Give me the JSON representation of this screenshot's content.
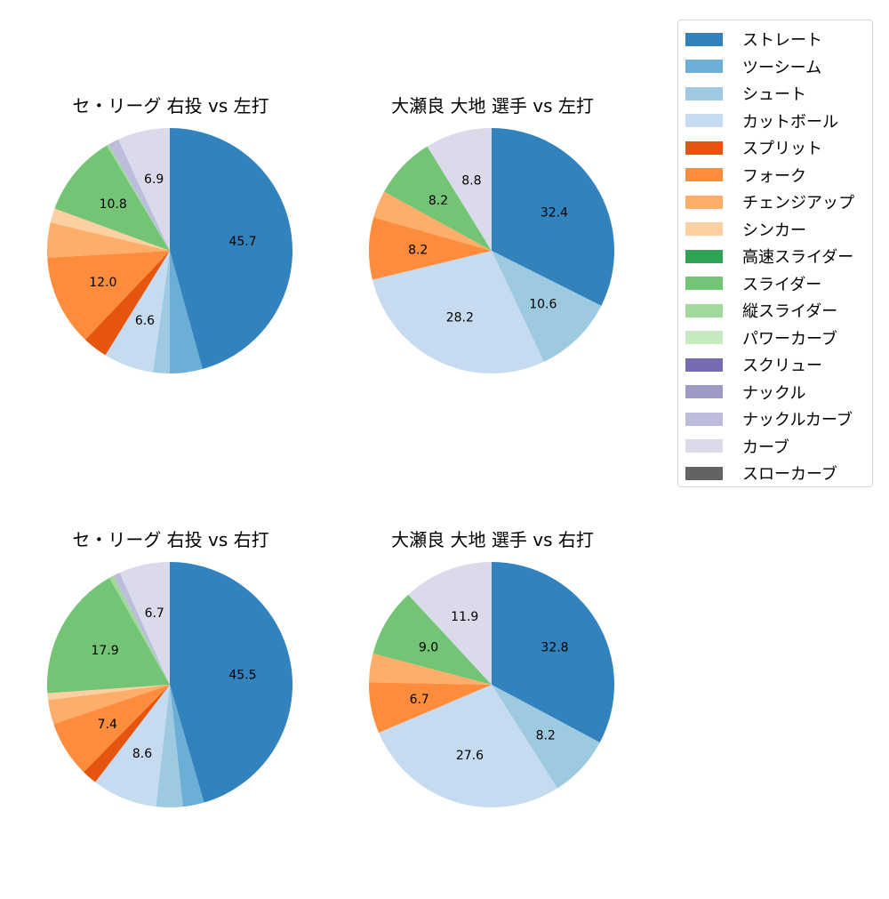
{
  "legend": {
    "items": [
      {
        "label": "ストレート",
        "color": "#3182bd"
      },
      {
        "label": "ツーシーム",
        "color": "#6baed6"
      },
      {
        "label": "シュート",
        "color": "#9ecae1"
      },
      {
        "label": "カットボール",
        "color": "#c6dbef"
      },
      {
        "label": "スプリット",
        "color": "#e6550d"
      },
      {
        "label": "フォーク",
        "color": "#fd8d3c"
      },
      {
        "label": "チェンジアップ",
        "color": "#fdae6b"
      },
      {
        "label": "シンカー",
        "color": "#fdd0a2"
      },
      {
        "label": "高速スライダー",
        "color": "#31a354"
      },
      {
        "label": "スライダー",
        "color": "#74c476"
      },
      {
        "label": "縦スライダー",
        "color": "#a1d99b"
      },
      {
        "label": "パワーカーブ",
        "color": "#c7e9c0"
      },
      {
        "label": "スクリュー",
        "color": "#756bb1"
      },
      {
        "label": "ナックル",
        "color": "#9e9ac8"
      },
      {
        "label": "ナックルカーブ",
        "color": "#bcbddc"
      },
      {
        "label": "カーブ",
        "color": "#dadaeb"
      },
      {
        "label": "スローカーブ",
        "color": "#636363"
      }
    ]
  },
  "panels": [
    {
      "title": "セ・リーグ 右投 vs 左打"
    },
    {
      "title": "大瀬良 大地 選手 vs 左打"
    },
    {
      "title": "セ・リーグ 右投 vs 右打"
    },
    {
      "title": "大瀬良 大地 選手 vs 右打"
    }
  ],
  "chart_data": [
    {
      "type": "pie",
      "title": "セ・リーグ 右投 vs 左打",
      "categories": [
        "ストレート",
        "ツーシーム",
        "シュート",
        "カットボール",
        "スプリット",
        "フォーク",
        "チェンジアップ",
        "シンカー",
        "スライダー",
        "縦スライダー",
        "ナックルカーブ",
        "カーブ"
      ],
      "values": [
        45.7,
        4.3,
        2.2,
        6.6,
        3.3,
        12.0,
        4.6,
        1.9,
        10.8,
        0.3,
        1.4,
        6.9
      ],
      "labels_shown": [
        "45.7",
        "12.0",
        "10.8"
      ],
      "startangle": 90,
      "direction": "clockwise"
    },
    {
      "type": "pie",
      "title": "大瀬良 大地 選手 vs 左打",
      "categories": [
        "ストレート",
        "シュート",
        "カットボール",
        "フォーク",
        "チェンジアップ",
        "スライダー",
        "カーブ"
      ],
      "values": [
        32.4,
        10.6,
        28.2,
        8.2,
        3.6,
        8.2,
        8.8
      ],
      "labels_shown": [
        "32.4",
        "10.6",
        "28.2",
        "8.2",
        "8.2",
        "8.8"
      ],
      "startangle": 90,
      "direction": "clockwise"
    },
    {
      "type": "pie",
      "title": "セ・リーグ 右投 vs 右打",
      "categories": [
        "ストレート",
        "ツーシーム",
        "シュート",
        "カットボール",
        "スプリット",
        "フォーク",
        "チェンジアップ",
        "シンカー",
        "スライダー",
        "縦スライダー",
        "ナックルカーブ",
        "カーブ"
      ],
      "values": [
        45.5,
        2.8,
        3.5,
        8.6,
        2.0,
        7.4,
        3.2,
        0.9,
        17.9,
        0.6,
        0.9,
        6.7
      ],
      "labels_shown": [
        "45.5",
        "8.6",
        "17.9"
      ],
      "startangle": 90,
      "direction": "clockwise"
    },
    {
      "type": "pie",
      "title": "大瀬良 大地 選手 vs 右打",
      "categories": [
        "ストレート",
        "シュート",
        "カットボール",
        "フォーク",
        "チェンジアップ",
        "スライダー",
        "カーブ"
      ],
      "values": [
        32.8,
        8.2,
        27.6,
        6.7,
        3.8,
        9.0,
        11.9
      ],
      "labels_shown": [
        "32.8",
        "8.2",
        "27.6",
        "6.7",
        "9.0",
        "11.9"
      ],
      "startangle": 90,
      "direction": "clockwise"
    }
  ]
}
